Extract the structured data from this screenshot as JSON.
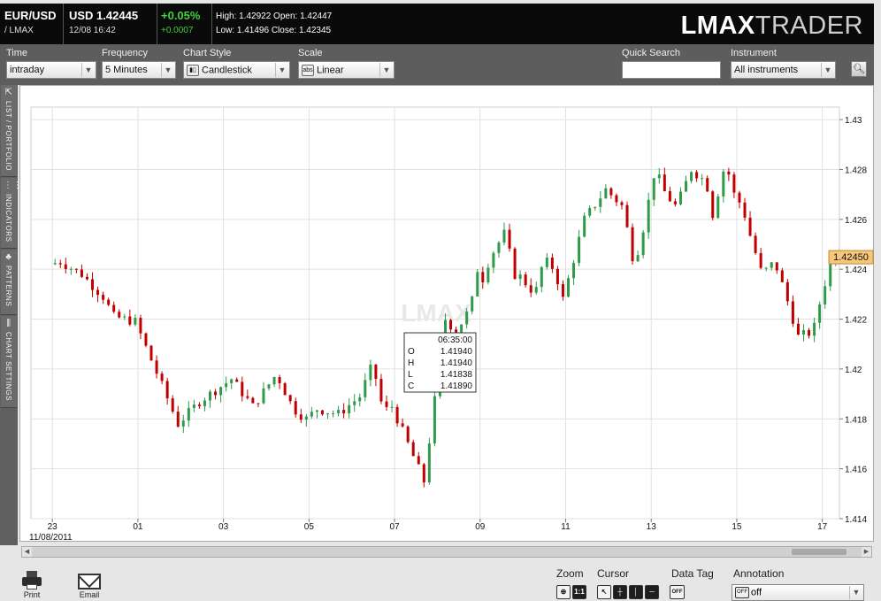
{
  "header": {
    "pair": "EUR/USD",
    "source": "/ LMAX",
    "price": "USD 1.42445",
    "datetime": "12/08 16:42",
    "change_pct": "+0.05%",
    "change_abs": "+0.0007",
    "high_line": "High: 1.42922  Open: 1.42447",
    "low_line": "Low: 1.41496  Close: 1.42345",
    "logo_bold": "LMAX",
    "logo_light": "TRADER"
  },
  "toolbar": {
    "time": {
      "label": "Time",
      "value": "intraday"
    },
    "frequency": {
      "label": "Frequency",
      "value": "5 Minutes"
    },
    "chart_style": {
      "label": "Chart Style",
      "value": "Candlestick",
      "icon": "candlestick-icon"
    },
    "scale": {
      "label": "Scale",
      "value": "Linear",
      "icon_text": "abs"
    },
    "quick_search": {
      "label": "Quick Search",
      "value": ""
    },
    "instrument": {
      "label": "Instrument",
      "value": "All instruments"
    }
  },
  "sidetabs": [
    {
      "label": "LIST / PORTFOLIO",
      "icon": "list-icon"
    },
    {
      "label": "INDICATORS",
      "icon": "indicators-icon"
    },
    {
      "label": "PATTERNS",
      "icon": "patterns-icon"
    },
    {
      "label": "CHART SETTINGS",
      "icon": "settings-icon"
    }
  ],
  "colors": {
    "up": "#2e9a4a",
    "down": "#c00000",
    "grid": "#e0e0e0",
    "current_price_bg": "#f6c77b"
  },
  "chart_data": {
    "type": "candlestick",
    "watermark": "LMAX",
    "ylim": [
      1.414,
      1.4305
    ],
    "y_ticks": [
      "1.43",
      "1.428",
      "1.426",
      "1.424",
      "1.422",
      "1.42",
      "1.418",
      "1.416",
      "1.414"
    ],
    "x_ticks": [
      "23",
      "01",
      "03",
      "05",
      "07",
      "09",
      "11",
      "13",
      "15",
      "17"
    ],
    "x_start_label": "11/08/2011",
    "current_price": "1.42450",
    "tooltip": {
      "time": "06:35:00",
      "rows": [
        {
          "k": "O",
          "v": "1.41940"
        },
        {
          "k": "H",
          "v": "1.41940"
        },
        {
          "k": "L",
          "v": "1.41838"
        },
        {
          "k": "C",
          "v": "1.41890"
        }
      ]
    },
    "path_hours": [
      0,
      0.5,
      1.5,
      2.5,
      3.0,
      4.0,
      6.0,
      7.0,
      8.5,
      9.5,
      10.6,
      11.4,
      12.0,
      12.5,
      13.5,
      14.5,
      15.1,
      15.6,
      16.0,
      17.5,
      18.5,
      19.0,
      19.7,
      20.0,
      20.2,
      20.6,
      21.3,
      21.7,
      22.0,
      22.7,
      23.1,
      23.6,
      24.0,
      25.0,
      26.0,
      26.8,
      27.3,
      27.6,
      28.3,
      28.8,
      29.3,
      30.0,
      30.7,
      31.0,
      31.6,
      32.0,
      32.4,
      32.7,
      33.3,
      33.9,
      34.4,
      35.0,
      35.7,
      36.1,
      36.6
    ],
    "path_prices": [
      1.4242,
      1.4243,
      1.4238,
      1.4229,
      1.4221,
      1.4219,
      1.4178,
      1.4187,
      1.4196,
      1.4185,
      1.4198,
      1.4184,
      1.418,
      1.4184,
      1.4182,
      1.4189,
      1.4202,
      1.4183,
      1.4185,
      1.4155,
      1.422,
      1.4215,
      1.4225,
      1.424,
      1.4235,
      1.4245,
      1.4255,
      1.4238,
      1.4237,
      1.423,
      1.4244,
      1.424,
      1.4228,
      1.426,
      1.4272,
      1.4265,
      1.4243,
      1.425,
      1.428,
      1.427,
      1.4265,
      1.428,
      1.4275,
      1.4262,
      1.4283,
      1.427,
      1.4265,
      1.4255,
      1.4238,
      1.4243,
      1.423,
      1.4213,
      1.4215,
      1.423,
      1.4245
    ],
    "x_range_hours": [
      -1.0,
      36.8
    ]
  },
  "bottom": {
    "print_label": "Print",
    "email_label": "Email",
    "zoom_label": "Zoom",
    "zoom_ratio": "1:1",
    "cursor_label": "Cursor",
    "datatag_label": "Data Tag",
    "datatag_value": "OFF",
    "annotation_label": "Annotation",
    "annotation_value": "off",
    "annotation_icon_text": "OFF"
  }
}
